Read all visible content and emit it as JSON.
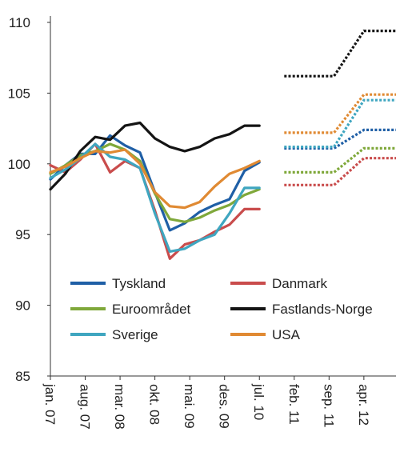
{
  "chart_data": {
    "type": "line",
    "title": "",
    "xlabel": "",
    "ylabel": "",
    "ylim": [
      85,
      110
    ],
    "y_ticks": [
      85,
      90,
      95,
      100,
      105,
      110
    ],
    "x_ticks": [
      "jan. 07",
      "aug. 07",
      "mar. 08",
      "okt. 08",
      "mai. 09",
      "des. 09",
      "jul. 10",
      "feb. 11",
      "sep. 11",
      "apr. 12"
    ],
    "grid": false,
    "legend_position": "lower-left",
    "series": [
      {
        "name": "Tyskland",
        "color": "#1f5fa6",
        "x": [
          "2007-01",
          "2007-04",
          "2007-07",
          "2007-10",
          "2008-01",
          "2008-04",
          "2008-07",
          "2008-10",
          "2009-01",
          "2009-04",
          "2009-07",
          "2009-10",
          "2010-01",
          "2010-04",
          "2010-07"
        ],
        "values": [
          98.9,
          99.9,
          100.7,
          100.7,
          102.0,
          101.3,
          100.8,
          98.0,
          95.3,
          95.8,
          96.6,
          97.1,
          97.5,
          99.5,
          100.1
        ],
        "forecast": {
          "x": [
            "2010-12",
            "2011-10",
            "2012-04",
            "2012-10"
          ],
          "values": [
            101.1,
            101.1,
            102.4,
            102.4
          ]
        }
      },
      {
        "name": "Danmark",
        "color": "#c94c4c",
        "x": [
          "2007-01",
          "2007-04",
          "2007-07",
          "2007-10",
          "2008-01",
          "2008-04",
          "2008-07",
          "2008-10",
          "2009-01",
          "2009-04",
          "2009-07",
          "2009-10",
          "2010-01",
          "2010-04",
          "2010-07"
        ],
        "values": [
          99.9,
          99.4,
          100.3,
          101.4,
          99.4,
          100.2,
          99.7,
          96.7,
          93.3,
          94.3,
          94.6,
          95.2,
          95.7,
          96.8,
          96.8
        ],
        "forecast": {
          "x": [
            "2010-12",
            "2011-10",
            "2012-04",
            "2012-10"
          ],
          "values": [
            98.5,
            98.5,
            100.4,
            100.4
          ]
        }
      },
      {
        "name": "Euroområdet",
        "color": "#7fa83a",
        "x": [
          "2007-01",
          "2007-04",
          "2007-07",
          "2007-10",
          "2008-01",
          "2008-04",
          "2008-07",
          "2008-10",
          "2009-01",
          "2009-04",
          "2009-07",
          "2009-10",
          "2010-01",
          "2010-04",
          "2010-07"
        ],
        "values": [
          99.3,
          99.9,
          100.6,
          100.9,
          101.4,
          101.0,
          100.2,
          97.9,
          96.1,
          95.9,
          96.2,
          96.7,
          97.1,
          97.8,
          98.2
        ],
        "forecast": {
          "x": [
            "2010-12",
            "2011-10",
            "2012-04",
            "2012-10"
          ],
          "values": [
            99.4,
            99.4,
            101.1,
            101.1
          ]
        }
      },
      {
        "name": "Fastlands-Norge",
        "color": "#141414",
        "x": [
          "2007-01",
          "2007-04",
          "2007-07",
          "2007-10",
          "2008-01",
          "2008-04",
          "2008-07",
          "2008-10",
          "2009-01",
          "2009-04",
          "2009-07",
          "2009-10",
          "2010-01",
          "2010-04",
          "2010-07"
        ],
        "values": [
          98.2,
          99.3,
          100.9,
          101.9,
          101.7,
          102.7,
          102.9,
          101.8,
          101.2,
          100.9,
          101.2,
          101.8,
          102.1,
          102.7,
          102.7
        ],
        "forecast": {
          "x": [
            "2010-12",
            "2011-10",
            "2012-04",
            "2012-10"
          ],
          "values": [
            106.2,
            106.2,
            109.4,
            109.4
          ]
        }
      },
      {
        "name": "Sverige",
        "color": "#3fa6c0",
        "x": [
          "2007-01",
          "2007-04",
          "2007-07",
          "2007-10",
          "2008-01",
          "2008-04",
          "2008-07",
          "2008-10",
          "2009-01",
          "2009-04",
          "2009-07",
          "2009-10",
          "2010-01",
          "2010-04",
          "2010-07"
        ],
        "values": [
          99.0,
          99.6,
          100.4,
          101.4,
          100.5,
          100.3,
          99.7,
          96.5,
          93.8,
          94.0,
          94.6,
          95.0,
          96.5,
          98.3,
          98.3
        ],
        "forecast": {
          "x": [
            "2010-12",
            "2011-10",
            "2012-04",
            "2012-10"
          ],
          "values": [
            101.2,
            101.2,
            104.5,
            104.5
          ]
        }
      },
      {
        "name": "USA",
        "color": "#e08a33",
        "x": [
          "2007-01",
          "2007-04",
          "2007-07",
          "2007-10",
          "2008-01",
          "2008-04",
          "2008-07",
          "2008-10",
          "2009-01",
          "2009-04",
          "2009-07",
          "2009-10",
          "2010-01",
          "2010-04",
          "2010-07"
        ],
        "values": [
          99.4,
          99.8,
          100.4,
          100.9,
          100.8,
          101.0,
          100.0,
          98.0,
          97.0,
          96.9,
          97.3,
          98.4,
          99.3,
          99.7,
          100.2
        ],
        "forecast": {
          "x": [
            "2010-12",
            "2011-10",
            "2012-04",
            "2012-10"
          ],
          "values": [
            102.2,
            102.2,
            104.9,
            104.9
          ]
        }
      }
    ]
  }
}
